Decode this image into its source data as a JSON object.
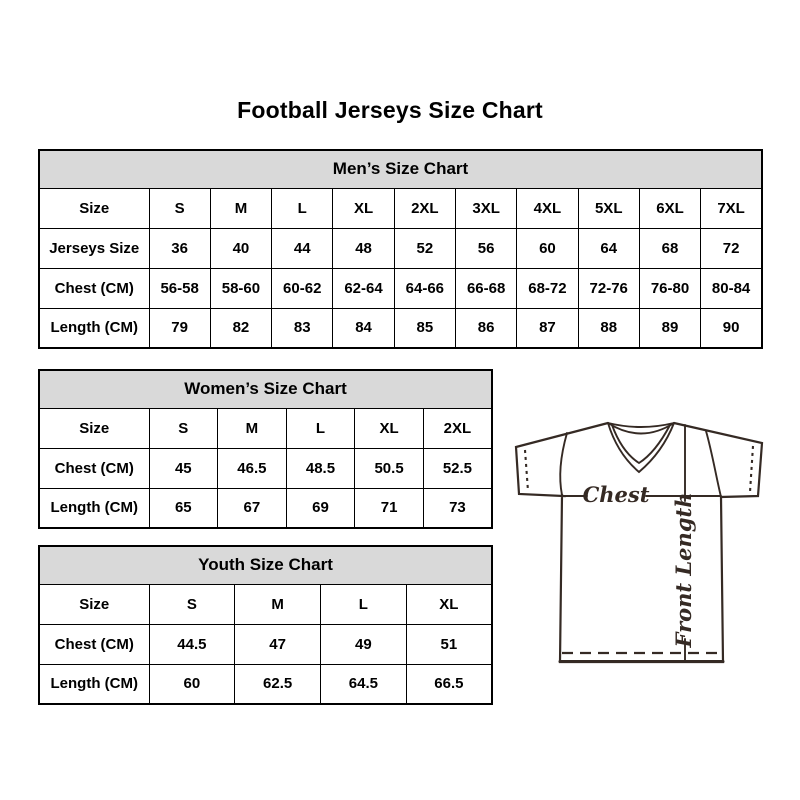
{
  "title": "Football Jerseys Size Chart",
  "tables": {
    "mens": {
      "header": "Men’s Size Chart",
      "rows": [
        [
          "Size",
          "S",
          "M",
          "L",
          "XL",
          "2XL",
          "3XL",
          "4XL",
          "5XL",
          "6XL",
          "7XL"
        ],
        [
          "Jerseys Size",
          "36",
          "40",
          "44",
          "48",
          "52",
          "56",
          "60",
          "64",
          "68",
          "72"
        ],
        [
          "Chest (CM)",
          "56-58",
          "58-60",
          "60-62",
          "62-64",
          "64-66",
          "66-68",
          "68-72",
          "72-76",
          "76-80",
          "80-84"
        ],
        [
          "Length (CM)",
          "79",
          "82",
          "83",
          "84",
          "85",
          "86",
          "87",
          "88",
          "89",
          "90"
        ]
      ]
    },
    "womens": {
      "header": "Women’s Size Chart",
      "rows": [
        [
          "Size",
          "S",
          "M",
          "L",
          "XL",
          "2XL"
        ],
        [
          "Chest (CM)",
          "45",
          "46.5",
          "48.5",
          "50.5",
          "52.5"
        ],
        [
          "Length (CM)",
          "65",
          "67",
          "69",
          "71",
          "73"
        ]
      ]
    },
    "youth": {
      "header": "Youth Size Chart",
      "rows": [
        [
          "Size",
          "S",
          "M",
          "L",
          "XL"
        ],
        [
          "Chest (CM)",
          "44.5",
          "47",
          "49",
          "51"
        ],
        [
          "Length (CM)",
          "60",
          "62.5",
          "64.5",
          "66.5"
        ]
      ]
    }
  },
  "diagram": {
    "chest_label": "Chest",
    "front_length_label": "Front Length"
  },
  "colors": {
    "page_background": "#ffffff",
    "table_header_background": "#d9d9d9",
    "table_border": "#000000",
    "text": "#000000",
    "diagram_line": "#352a24"
  }
}
